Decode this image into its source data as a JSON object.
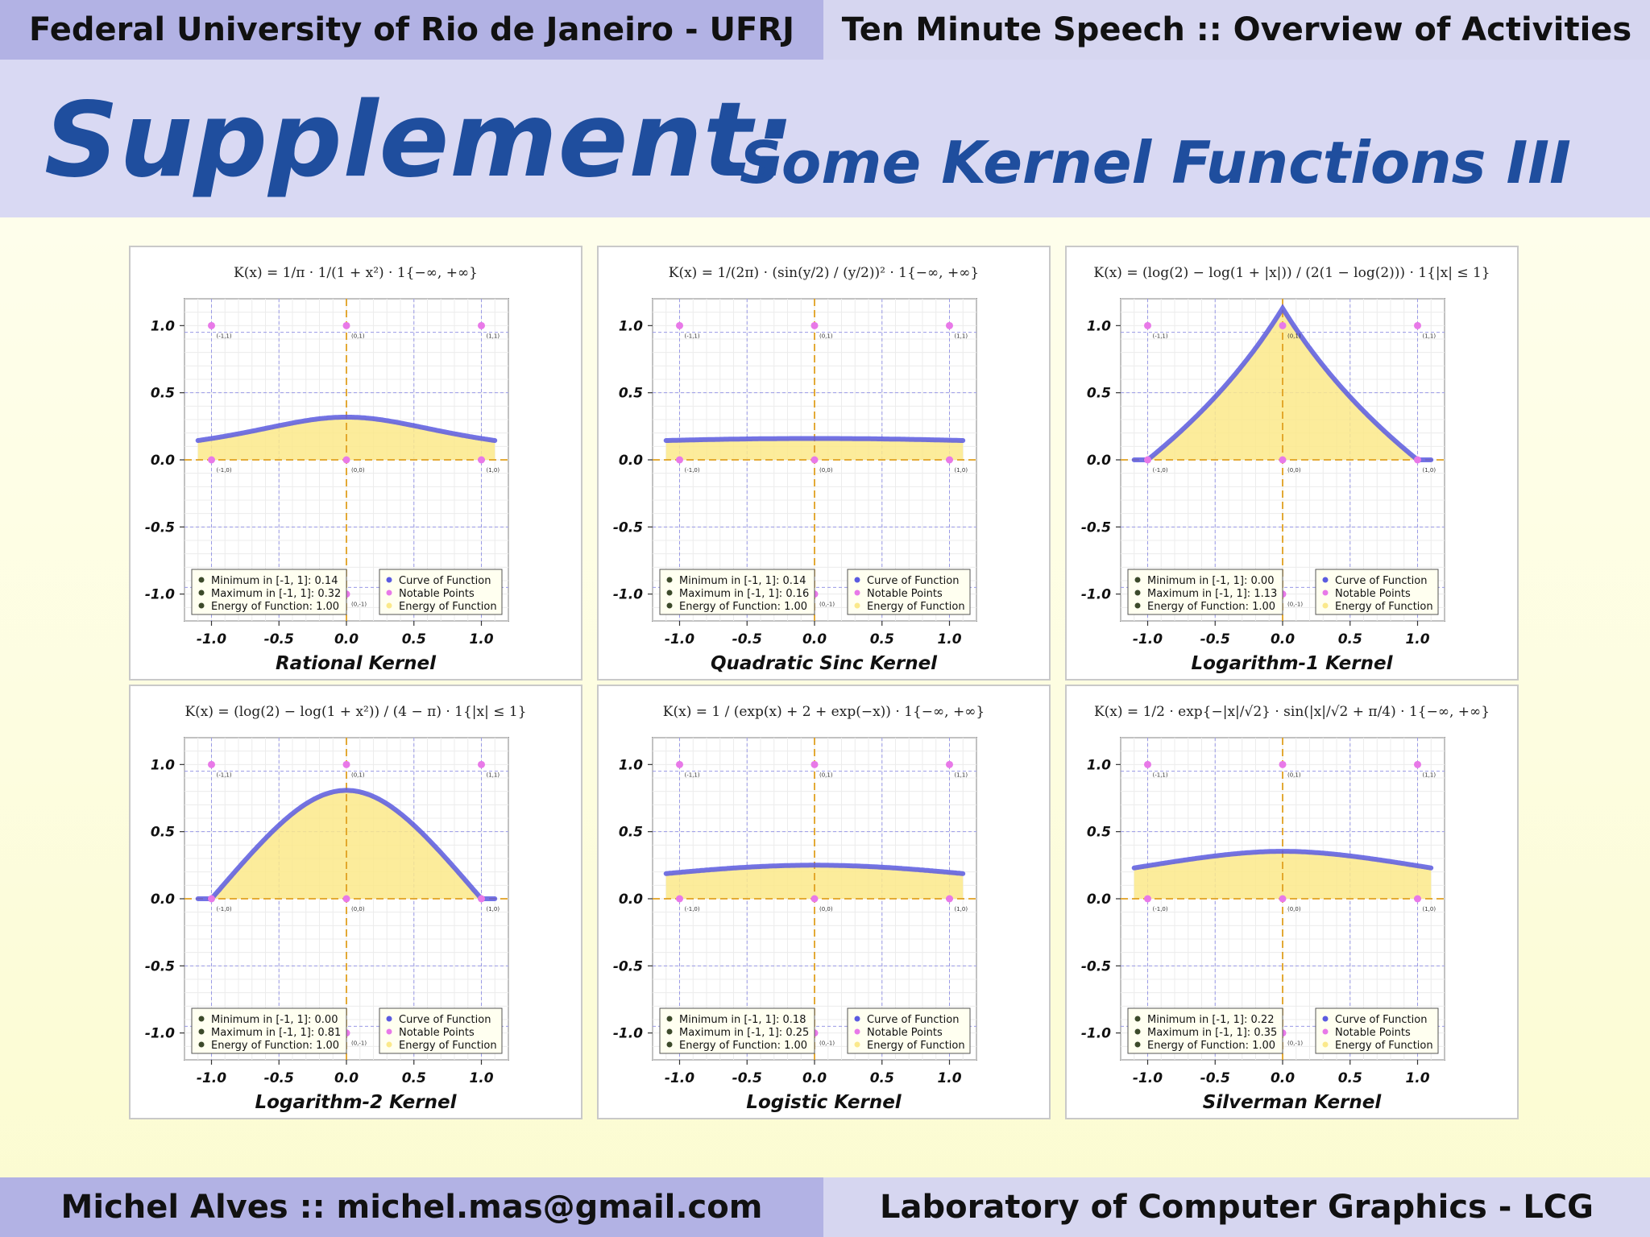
{
  "header": {
    "left": "Federal University of Rio de Janeiro - UFRJ",
    "right": "Ten Minute Speech :: Overview of Activities"
  },
  "title": {
    "main": "Supplement:",
    "sub": "Some Kernel Functions III"
  },
  "footer": {
    "left": "Michel Alves :: michel.mas@gmail.com",
    "right": "Laboratory of Computer Graphics - LCG"
  },
  "colors": {
    "curve": "#5b5be0",
    "energy_fill": "#fbe98a",
    "notable_points": "#e879e8",
    "axis_dashed": "#e0a020",
    "grid_dashed": "#9a9ae6",
    "title_blue": "#1f4e9e"
  },
  "legend_common": {
    "curve": "Curve of Function",
    "points": "Notable Points",
    "energy": "Energy of Function"
  },
  "chart_data": [
    {
      "type": "line",
      "kernel": "Rational Kernel",
      "formula": "K(x) = 1/π · 1/(1 + x²) · 1{−∞, +∞}",
      "xlim": [
        -1.2,
        1.2
      ],
      "ylim": [
        -1.2,
        1.2
      ],
      "x_ticks": [
        "-1.0",
        "-0.5",
        "0.0",
        "0.5",
        "1.0"
      ],
      "y_ticks": [
        "1.0",
        "0.5",
        "0.0",
        "-0.5",
        "-1.0"
      ],
      "support": "all",
      "function": "rational",
      "notable_points": [
        [
          -1,
          1
        ],
        [
          0,
          1
        ],
        [
          1,
          1
        ],
        [
          -1,
          0
        ],
        [
          0,
          0
        ],
        [
          1,
          0
        ],
        [
          0,
          -1
        ]
      ],
      "point_labels": [
        "(-1,1)",
        "(0,1)",
        "(1,1)",
        "(-1,0)",
        "(0,0)",
        "(1,0)",
        "(0,-1)"
      ],
      "stats": [
        "Minimum in [-1, 1]:  0.14",
        "Maximum in [-1, 1]:  0.32",
        "Energy of Function:  1.00"
      ],
      "grid": true,
      "legend_position": "bottom-right"
    },
    {
      "type": "line",
      "kernel": "Quadratic Sinc Kernel",
      "formula": "K(x) = 1/(2π) · (sin(y/2) / (y/2))² · 1{−∞, +∞}",
      "xlim": [
        -1.2,
        1.2
      ],
      "ylim": [
        -1.2,
        1.2
      ],
      "x_ticks": [
        "-1.0",
        "-0.5",
        "0.0",
        "0.5",
        "1.0"
      ],
      "y_ticks": [
        "1.0",
        "0.5",
        "0.0",
        "-0.5",
        "-1.0"
      ],
      "support": "all",
      "function": "qsinc",
      "notable_points": [
        [
          -1,
          1
        ],
        [
          0,
          1
        ],
        [
          1,
          1
        ],
        [
          -1,
          0
        ],
        [
          0,
          0
        ],
        [
          1,
          0
        ],
        [
          0,
          -1
        ]
      ],
      "point_labels": [
        "(-1,1)",
        "(0,1)",
        "(1,1)",
        "(-1,0)",
        "(0,0)",
        "(1,0)",
        "(0,-1)"
      ],
      "stats": [
        "Minimum in [-1, 1]:  0.14",
        "Maximum in [-1, 1]:  0.16",
        "Energy of Function:  1.00"
      ],
      "grid": true,
      "legend_position": "bottom-right"
    },
    {
      "type": "line",
      "kernel": "Logarithm-1 Kernel",
      "formula": "K(x) = (log(2) − log(1 + |x|)) / (2(1 − log(2))) · 1{|x| ≤ 1}",
      "xlim": [
        -1.2,
        1.2
      ],
      "ylim": [
        -1.2,
        1.2
      ],
      "x_ticks": [
        "-1.0",
        "-0.5",
        "0.0",
        "0.5",
        "1.0"
      ],
      "y_ticks": [
        "1.0",
        "0.5",
        "0.0",
        "-0.5",
        "-1.0"
      ],
      "support": "unit",
      "function": "log1",
      "notable_points": [
        [
          -1,
          1
        ],
        [
          0,
          1
        ],
        [
          1,
          1
        ],
        [
          -1,
          0
        ],
        [
          0,
          0
        ],
        [
          1,
          0
        ],
        [
          0,
          -1
        ]
      ],
      "point_labels": [
        "(-1,1)",
        "(0,1)",
        "(1,1)",
        "(-1,0)",
        "(0,0)",
        "(1,0)",
        "(0,-1)"
      ],
      "stats": [
        "Minimum in [-1, 1]:  0.00",
        "Maximum in [-1, 1]:  1.13",
        "Energy of Function:  1.00"
      ],
      "grid": true,
      "legend_position": "bottom-right"
    },
    {
      "type": "line",
      "kernel": "Logarithm-2 Kernel",
      "formula": "K(x) = (log(2) − log(1 + x²)) / (4 − π) · 1{|x| ≤ 1}",
      "xlim": [
        -1.2,
        1.2
      ],
      "ylim": [
        -1.2,
        1.2
      ],
      "x_ticks": [
        "-1.0",
        "-0.5",
        "0.0",
        "0.5",
        "1.0"
      ],
      "y_ticks": [
        "1.0",
        "0.5",
        "0.0",
        "-0.5",
        "-1.0"
      ],
      "support": "unit",
      "function": "log2",
      "notable_points": [
        [
          -1,
          1
        ],
        [
          0,
          1
        ],
        [
          1,
          1
        ],
        [
          -1,
          0
        ],
        [
          0,
          0
        ],
        [
          1,
          0
        ],
        [
          0,
          -1
        ]
      ],
      "point_labels": [
        "(-1,1)",
        "(0,1)",
        "(1,1)",
        "(-1,0)",
        "(0,0)",
        "(1,0)",
        "(0,-1)"
      ],
      "stats": [
        "Minimum in [-1, 1]:  0.00",
        "Maximum in [-1, 1]:  0.81",
        "Energy of Function:  1.00"
      ],
      "grid": true,
      "legend_position": "bottom-right"
    },
    {
      "type": "line",
      "kernel": "Logistic Kernel",
      "formula": "K(x) = 1 / (exp(x) + 2 + exp(−x)) · 1{−∞, +∞}",
      "xlim": [
        -1.2,
        1.2
      ],
      "ylim": [
        -1.2,
        1.2
      ],
      "x_ticks": [
        "-1.0",
        "-0.5",
        "0.0",
        "0.5",
        "1.0"
      ],
      "y_ticks": [
        "1.0",
        "0.5",
        "0.0",
        "-0.5",
        "-1.0"
      ],
      "support": "all",
      "function": "logistic",
      "notable_points": [
        [
          -1,
          1
        ],
        [
          0,
          1
        ],
        [
          1,
          1
        ],
        [
          -1,
          0
        ],
        [
          0,
          0
        ],
        [
          1,
          0
        ],
        [
          0,
          -1
        ]
      ],
      "point_labels": [
        "(-1,1)",
        "(0,1)",
        "(1,1)",
        "(-1,0)",
        "(0,0)",
        "(1,0)",
        "(0,-1)"
      ],
      "stats": [
        "Minimum in [-1, 1]:  0.18",
        "Maximum in [-1, 1]:  0.25",
        "Energy of Function:  1.00"
      ],
      "grid": true,
      "legend_position": "bottom-right"
    },
    {
      "type": "line",
      "kernel": "Silverman Kernel",
      "formula": "K(x) = 1/2 · exp{−|x|/√2} · sin(|x|/√2 + π/4) · 1{−∞, +∞}",
      "xlim": [
        -1.2,
        1.2
      ],
      "ylim": [
        -1.2,
        1.2
      ],
      "x_ticks": [
        "-1.0",
        "-0.5",
        "0.0",
        "0.5",
        "1.0"
      ],
      "y_ticks": [
        "1.0",
        "0.5",
        "0.0",
        "-0.5",
        "-1.0"
      ],
      "support": "all",
      "function": "silverman",
      "notable_points": [
        [
          -1,
          1
        ],
        [
          0,
          1
        ],
        [
          1,
          1
        ],
        [
          -1,
          0
        ],
        [
          0,
          0
        ],
        [
          1,
          0
        ],
        [
          0,
          -1
        ]
      ],
      "point_labels": [
        "(-1,1)",
        "(0,1)",
        "(1,1)",
        "(-1,0)",
        "(0,0)",
        "(1,0)",
        "(0,-1)"
      ],
      "stats": [
        "Minimum in [-1, 1]:  0.22",
        "Maximum in [-1, 1]:  0.35",
        "Energy of Function:  1.00"
      ],
      "grid": true,
      "legend_position": "bottom-right"
    }
  ]
}
